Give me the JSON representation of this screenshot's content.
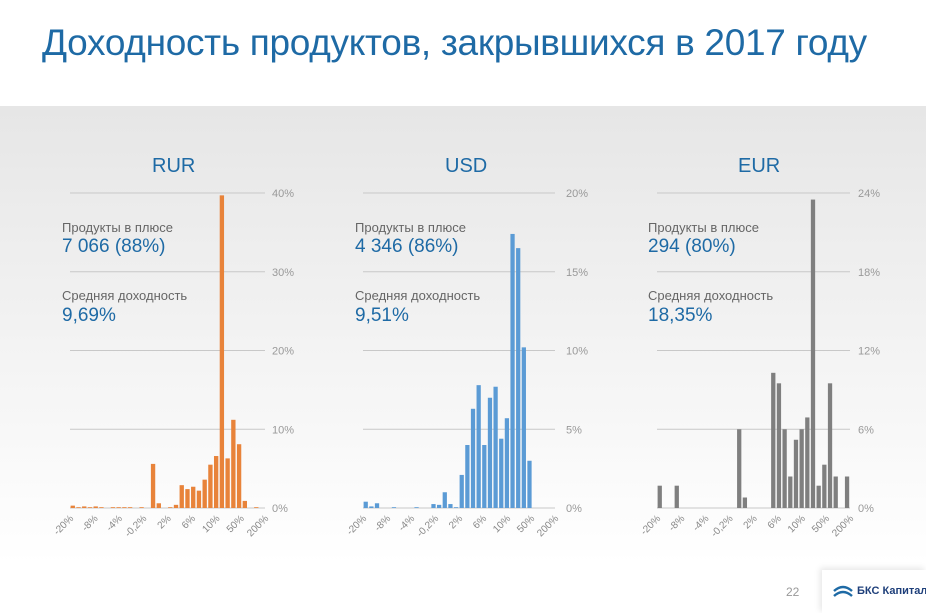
{
  "title": "Доходность продуктов, закрывшихся в 2017 году",
  "page_number": "22",
  "logo": "БКС Капитал",
  "chart_data": [
    {
      "type": "bar",
      "title": "RUR",
      "color": "#e8833a",
      "stat1_label": "Продукты в плюсе",
      "stat1_value": "7 066  (88%)",
      "stat2_label": "Средняя доходность",
      "stat2_value": "9,69%",
      "ylim": [
        0,
        40
      ],
      "yticks": [
        "0%",
        "10%",
        "20%",
        "30%",
        "40%"
      ],
      "ytick_values": [
        0,
        10,
        20,
        30,
        40
      ],
      "xticks": [
        "-20%",
        "-8%",
        "-4%",
        "-0,2%",
        "2%",
        "6%",
        "10%",
        "50%",
        "200%"
      ],
      "values": [
        0.3,
        0.1,
        0.2,
        0.1,
        0.2,
        0.1,
        0,
        0.1,
        0.1,
        0.05,
        0.1,
        0,
        0.1,
        0,
        5.6,
        0.6,
        0,
        0.1,
        0.4,
        2.9,
        2.4,
        2.7,
        2.2,
        3.6,
        5.5,
        6.6,
        39.7,
        6.3,
        11.2,
        8.1,
        0.9,
        0,
        0.1,
        0
      ]
    },
    {
      "type": "bar",
      "title": "USD",
      "color": "#5b9bd5",
      "stat1_label": "Продукты в плюсе",
      "stat1_value": "4 346  (86%)",
      "stat2_label": "Средняя доходность",
      "stat2_value": "9,51%",
      "ylim": [
        0,
        20
      ],
      "yticks": [
        "0%",
        "5%",
        "10%",
        "15%",
        "20%"
      ],
      "ytick_values": [
        0,
        5,
        10,
        15,
        20
      ],
      "xticks": [
        "-20%",
        "-8%",
        "-4%",
        "-0,2%",
        "2%",
        "6%",
        "10%",
        "50%",
        "200%"
      ],
      "values": [
        0.4,
        0.1,
        0.3,
        0,
        0,
        0.05,
        0,
        0,
        0,
        0.05,
        0,
        0,
        0.25,
        0.2,
        1.0,
        0.25,
        0.05,
        2.1,
        4.0,
        6.3,
        7.8,
        4.0,
        7.0,
        7.7,
        4.4,
        5.7,
        17.4,
        16.5,
        10.2,
        3.0,
        0,
        0,
        0,
        0
      ]
    },
    {
      "type": "bar",
      "title": "EUR",
      "color": "#7f7f7f",
      "stat1_label": "Продукты в плюсе",
      "stat1_value": "294  (80%)",
      "stat2_label": "Средняя доходность",
      "stat2_value": "18,35%",
      "ylim": [
        0,
        24
      ],
      "yticks": [
        "0%",
        "6%",
        "12%",
        "18%",
        "24%"
      ],
      "ytick_values": [
        0,
        6,
        12,
        18,
        24
      ],
      "xticks": [
        "-20%",
        "-8%",
        "-4%",
        "-0,2%",
        "2%",
        "6%",
        "10%",
        "50%",
        "200%"
      ],
      "values": [
        1.7,
        0,
        0,
        1.7,
        0,
        0,
        0,
        0,
        0,
        0,
        0,
        0,
        0,
        0,
        6.0,
        0.8,
        0,
        0,
        0,
        0,
        10.3,
        9.5,
        6.0,
        2.4,
        5.2,
        6.0,
        6.9,
        23.5,
        1.7,
        3.3,
        9.5,
        2.4,
        0,
        2.4
      ]
    }
  ]
}
